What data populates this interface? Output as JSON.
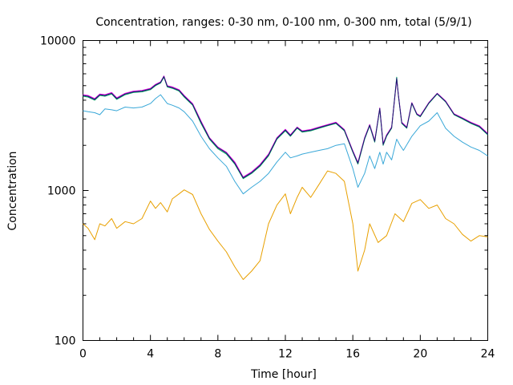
{
  "chart_data": {
    "type": "line",
    "title": "Concentration, ranges: 0-30 nm, 0-100 nm, 0-300 nm, total (5/9/1)",
    "xlabel": "Time [hour]",
    "ylabel": "Concentration",
    "xlim": [
      0,
      24
    ],
    "ylim": [
      100,
      10000
    ],
    "yscale": "log",
    "grid": false,
    "legend": "none",
    "x_ticks": [
      0,
      4,
      8,
      12,
      16,
      20,
      24
    ],
    "x_tick_labels": [
      "0",
      "4",
      "8",
      "12",
      "16",
      "20",
      "24"
    ],
    "y_ticks": [
      100,
      1000,
      10000
    ],
    "y_tick_labels": [
      "100",
      "1000",
      "10000"
    ],
    "series": [
      {
        "color": "#e8a000",
        "x": [
          0,
          0.3,
          0.7,
          1.0,
          1.3,
          1.7,
          2.0,
          2.5,
          3.0,
          3.5,
          4.0,
          4.3,
          4.6,
          5.0,
          5.3,
          5.7,
          6.0,
          6.5,
          7.0,
          7.5,
          8.0,
          8.5,
          9.0,
          9.5,
          10.0,
          10.5,
          11.0,
          11.5,
          12.0,
          12.3,
          12.7,
          13.0,
          13.5,
          14.0,
          14.5,
          15.0,
          15.5,
          16.0,
          16.3,
          16.7,
          17.0,
          17.5,
          18.0,
          18.5,
          19.0,
          19.5,
          20.0,
          20.5,
          21.0,
          21.5,
          22.0,
          22.5,
          23.0,
          23.5,
          24.0
        ],
        "values": [
          600,
          560,
          470,
          600,
          580,
          650,
          560,
          620,
          600,
          650,
          850,
          760,
          830,
          720,
          880,
          950,
          1010,
          940,
          700,
          550,
          460,
          390,
          310,
          255,
          290,
          340,
          600,
          800,
          950,
          700,
          900,
          1050,
          900,
          1100,
          1350,
          1300,
          1150,
          600,
          290,
          400,
          600,
          450,
          500,
          700,
          620,
          820,
          870,
          760,
          800,
          650,
          600,
          510,
          460,
          500,
          490
        ]
      },
      {
        "color": "#3aa8d8",
        "x": [
          0,
          0.3,
          0.7,
          1.0,
          1.3,
          1.7,
          2.0,
          2.5,
          3.0,
          3.5,
          4.0,
          4.3,
          4.6,
          5.0,
          5.3,
          5.7,
          6.0,
          6.5,
          7.0,
          7.5,
          8.0,
          8.5,
          9.0,
          9.5,
          10.0,
          10.5,
          11.0,
          11.5,
          12.0,
          12.3,
          12.7,
          13.0,
          13.5,
          14.0,
          14.5,
          15.0,
          15.5,
          16.0,
          16.3,
          16.7,
          17.0,
          17.3,
          17.6,
          17.8,
          18.0,
          18.3,
          18.6,
          18.8,
          19.0,
          19.5,
          20.0,
          20.5,
          21.0,
          21.5,
          22.0,
          22.5,
          23.0,
          23.5,
          24.0
        ],
        "values": [
          3400,
          3350,
          3300,
          3200,
          3500,
          3450,
          3400,
          3600,
          3550,
          3600,
          3800,
          4100,
          4350,
          3800,
          3700,
          3550,
          3350,
          2900,
          2300,
          1900,
          1650,
          1450,
          1150,
          950,
          1050,
          1150,
          1300,
          1550,
          1800,
          1650,
          1700,
          1750,
          1800,
          1850,
          1900,
          2000,
          2050,
          1400,
          1050,
          1300,
          1700,
          1400,
          1800,
          1500,
          1800,
          1600,
          2200,
          2000,
          1850,
          2300,
          2700,
          2900,
          3300,
          2600,
          2300,
          2100,
          1950,
          1850,
          1700
        ]
      },
      {
        "color": "#00a060",
        "x": [
          0,
          0.3,
          0.7,
          1.0,
          1.3,
          1.7,
          2.0,
          2.5,
          3.0,
          3.5,
          4.0,
          4.3,
          4.6,
          4.8,
          5.0,
          5.3,
          5.7,
          6.0,
          6.5,
          7.0,
          7.5,
          8.0,
          8.5,
          9.0,
          9.5,
          10.0,
          10.5,
          11.0,
          11.5,
          12.0,
          12.3,
          12.7,
          13.0,
          13.5,
          14.0,
          14.5,
          15.0,
          15.5,
          16.0,
          16.3,
          16.7,
          17.0,
          17.3,
          17.6,
          17.8,
          18.0,
          18.3,
          18.6,
          18.7,
          18.9,
          19.2,
          19.5,
          19.8,
          20.0,
          20.5,
          21.0,
          21.5,
          22.0,
          22.5,
          23.0,
          23.5,
          24.0
        ],
        "values": [
          4250,
          4200,
          4000,
          4300,
          4250,
          4400,
          4050,
          4350,
          4500,
          4550,
          4700,
          5000,
          5200,
          5700,
          4900,
          4800,
          4600,
          4200,
          3700,
          2800,
          2200,
          1900,
          1750,
          1500,
          1200,
          1300,
          1450,
          1700,
          2200,
          2500,
          2300,
          2600,
          2450,
          2500,
          2600,
          2700,
          2800,
          2500,
          1800,
          1500,
          2200,
          2700,
          2100,
          3500,
          2000,
          2300,
          2600,
          5700,
          4300,
          2800,
          2600,
          3800,
          3200,
          3100,
          3800,
          4400,
          3900,
          3200,
          3000,
          2800,
          2650,
          2350
        ]
      },
      {
        "color": "#e000e0",
        "x": [
          0,
          0.3,
          0.7,
          1.0,
          1.3,
          1.7,
          2.0,
          2.5,
          3.0,
          3.5,
          4.0,
          4.3,
          4.6,
          4.8,
          5.0,
          5.3,
          5.7,
          6.0,
          6.5,
          7.0,
          7.5,
          8.0,
          8.5,
          9.0,
          9.5,
          10.0,
          10.5,
          11.0,
          11.5,
          12.0,
          12.3,
          12.7,
          13.0,
          13.5,
          14.0,
          14.5,
          15.0,
          15.5,
          16.0,
          16.3,
          16.7,
          17.0,
          17.3,
          17.6,
          17.8,
          18.0,
          18.3,
          18.6,
          18.7,
          18.9,
          19.2,
          19.5,
          19.8,
          20.0,
          20.5,
          21.0,
          21.5,
          22.0,
          22.5,
          23.0,
          23.5,
          24.0
        ],
        "values": [
          4350,
          4300,
          4100,
          4400,
          4350,
          4500,
          4150,
          4450,
          4600,
          4650,
          4800,
          5100,
          5300,
          5800,
          5000,
          4900,
          4700,
          4300,
          3800,
          2900,
          2250,
          1950,
          1800,
          1550,
          1230,
          1330,
          1490,
          1750,
          2250,
          2560,
          2350,
          2650,
          2500,
          2550,
          2650,
          2750,
          2850,
          2550,
          1840,
          1540,
          2250,
          2750,
          2150,
          3550,
          2050,
          2350,
          2650,
          5500,
          4350,
          2850,
          2650,
          3850,
          3250,
          3150,
          3850,
          4450,
          3950,
          3250,
          3050,
          2850,
          2700,
          2400
        ]
      },
      {
        "color": "#1a1a6e",
        "x": [
          0,
          0.3,
          0.7,
          1.0,
          1.3,
          1.7,
          2.0,
          2.5,
          3.0,
          3.5,
          4.0,
          4.3,
          4.6,
          4.8,
          5.0,
          5.3,
          5.7,
          6.0,
          6.5,
          7.0,
          7.5,
          8.0,
          8.5,
          9.0,
          9.5,
          10.0,
          10.5,
          11.0,
          11.5,
          12.0,
          12.3,
          12.7,
          13.0,
          13.5,
          14.0,
          14.5,
          15.0,
          15.5,
          16.0,
          16.3,
          16.7,
          17.0,
          17.3,
          17.6,
          17.8,
          18.0,
          18.3,
          18.6,
          18.7,
          18.9,
          19.2,
          19.5,
          19.8,
          20.0,
          20.5,
          21.0,
          21.5,
          22.0,
          22.5,
          23.0,
          23.5,
          24.0
        ],
        "values": [
          4300,
          4250,
          4050,
          4350,
          4300,
          4450,
          4100,
          4400,
          4550,
          4600,
          4750,
          5050,
          5250,
          5750,
          4950,
          4850,
          4650,
          4250,
          3750,
          2850,
          2230,
          1930,
          1780,
          1520,
          1215,
          1315,
          1470,
          1725,
          2225,
          2530,
          2325,
          2625,
          2475,
          2525,
          2625,
          2725,
          2825,
          2525,
          1820,
          1520,
          2225,
          2725,
          2125,
          3525,
          2025,
          2325,
          2625,
          5600,
          4325,
          2825,
          2625,
          3825,
          3225,
          3125,
          3825,
          4425,
          3925,
          3225,
          3025,
          2825,
          2675,
          2375
        ]
      }
    ]
  }
}
